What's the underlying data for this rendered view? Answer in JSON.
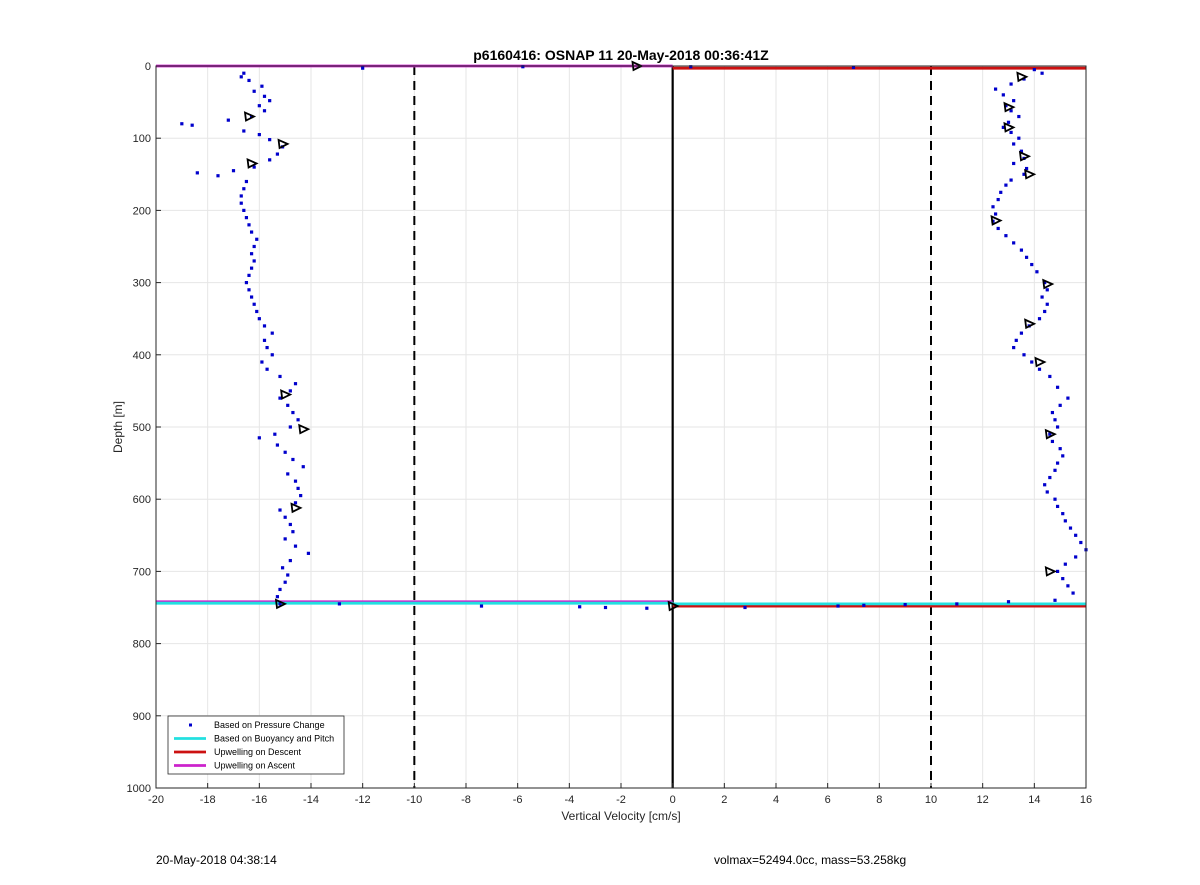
{
  "footer": {
    "left": "20-May-2018 04:38:14",
    "right": "volmax=52494.0cc, mass=53.258kg"
  },
  "chart_data": {
    "type": "scatter",
    "title": "p6160416: OSNAP 11 20-May-2018 00:36:41Z",
    "xlabel": "Vertical Velocity [cm/s]",
    "ylabel": "Depth [m]",
    "xlim": [
      -20,
      16
    ],
    "ylim": [
      0,
      1000
    ],
    "y_reversed": true,
    "grid": true,
    "xticks": [
      -20,
      -18,
      -16,
      -14,
      -12,
      -10,
      -8,
      -6,
      -4,
      -2,
      0,
      2,
      4,
      6,
      8,
      10,
      12,
      14,
      16
    ],
    "yticks": [
      0,
      100,
      200,
      300,
      400,
      500,
      600,
      700,
      800,
      900,
      1000
    ],
    "reference_lines": {
      "solid_x": [
        0
      ],
      "dashed_x": [
        -10,
        10
      ]
    },
    "legend": {
      "position": "bottom-left",
      "entries": [
        {
          "label": "Based on Pressure Change",
          "color": "#0000cc",
          "style": "dot"
        },
        {
          "label": "Based on Buoyancy and Pitch",
          "color": "#22e0e0",
          "style": "line"
        },
        {
          "label": "Upwelling on Descent",
          "color": "#cc1111",
          "style": "line"
        },
        {
          "label": "Upwelling on Ascent",
          "color": "#cc22cc",
          "style": "line"
        }
      ]
    },
    "series": [
      {
        "name": "Based on Pressure Change",
        "color": "#0000cc",
        "style": "dot",
        "descent": [
          [
            14.0,
            5
          ],
          [
            14.3,
            10
          ],
          [
            13.6,
            18
          ],
          [
            13.1,
            25
          ],
          [
            12.5,
            32
          ],
          [
            12.8,
            40
          ],
          [
            13.2,
            48
          ],
          [
            12.9,
            55
          ],
          [
            13.1,
            62
          ],
          [
            13.4,
            70
          ],
          [
            13.0,
            78
          ],
          [
            12.8,
            85
          ],
          [
            13.1,
            92
          ],
          [
            13.4,
            100
          ],
          [
            13.2,
            108
          ],
          [
            13.5,
            118
          ],
          [
            13.6,
            128
          ],
          [
            13.2,
            135
          ],
          [
            13.7,
            142
          ],
          [
            13.6,
            150
          ],
          [
            13.1,
            158
          ],
          [
            12.9,
            165
          ],
          [
            12.7,
            175
          ],
          [
            12.6,
            185
          ],
          [
            12.4,
            195
          ],
          [
            12.5,
            205
          ],
          [
            12.4,
            215
          ],
          [
            12.6,
            225
          ],
          [
            12.9,
            235
          ],
          [
            13.2,
            245
          ],
          [
            13.5,
            255
          ],
          [
            13.7,
            265
          ],
          [
            13.9,
            275
          ],
          [
            14.1,
            285
          ],
          [
            14.4,
            300
          ],
          [
            14.5,
            310
          ],
          [
            14.3,
            320
          ],
          [
            14.5,
            330
          ],
          [
            14.4,
            340
          ],
          [
            14.2,
            350
          ],
          [
            13.8,
            360
          ],
          [
            13.5,
            370
          ],
          [
            13.3,
            380
          ],
          [
            13.2,
            390
          ],
          [
            13.6,
            400
          ],
          [
            13.9,
            410
          ],
          [
            14.2,
            420
          ],
          [
            14.6,
            430
          ],
          [
            14.9,
            445
          ],
          [
            15.3,
            460
          ],
          [
            15.0,
            470
          ],
          [
            14.7,
            480
          ],
          [
            14.8,
            490
          ],
          [
            14.9,
            500
          ],
          [
            14.6,
            510
          ],
          [
            14.7,
            520
          ],
          [
            15.0,
            530
          ],
          [
            15.1,
            540
          ],
          [
            14.9,
            550
          ],
          [
            14.8,
            560
          ],
          [
            14.6,
            570
          ],
          [
            14.4,
            580
          ],
          [
            14.5,
            590
          ],
          [
            14.8,
            600
          ],
          [
            14.9,
            610
          ],
          [
            15.1,
            620
          ],
          [
            15.2,
            630
          ],
          [
            15.4,
            640
          ],
          [
            15.6,
            650
          ],
          [
            15.8,
            660
          ],
          [
            16.0,
            670
          ],
          [
            15.6,
            680
          ],
          [
            15.2,
            690
          ],
          [
            14.9,
            700
          ],
          [
            15.1,
            710
          ],
          [
            15.3,
            720
          ],
          [
            15.5,
            730
          ],
          [
            14.8,
            740
          ],
          [
            13.0,
            742
          ],
          [
            11.0,
            745
          ],
          [
            9.0,
            746
          ],
          [
            7.4,
            747
          ],
          [
            6.4,
            748
          ],
          [
            2.8,
            750
          ],
          [
            7.0,
            2
          ],
          [
            0.7,
            1
          ]
        ],
        "ascent": [
          [
            -15.2,
            745
          ],
          [
            -15.3,
            735
          ],
          [
            -15.2,
            725
          ],
          [
            -15.0,
            715
          ],
          [
            -14.9,
            705
          ],
          [
            -15.1,
            695
          ],
          [
            -14.8,
            685
          ],
          [
            -14.1,
            675
          ],
          [
            -14.6,
            665
          ],
          [
            -15.0,
            655
          ],
          [
            -14.7,
            645
          ],
          [
            -14.8,
            635
          ],
          [
            -15.0,
            625
          ],
          [
            -15.2,
            615
          ],
          [
            -14.6,
            605
          ],
          [
            -14.4,
            595
          ],
          [
            -14.5,
            585
          ],
          [
            -14.6,
            575
          ],
          [
            -14.9,
            565
          ],
          [
            -14.3,
            555
          ],
          [
            -14.7,
            545
          ],
          [
            -15.0,
            535
          ],
          [
            -15.3,
            525
          ],
          [
            -16.0,
            515
          ],
          [
            -15.4,
            510
          ],
          [
            -14.8,
            500
          ],
          [
            -14.5,
            490
          ],
          [
            -14.7,
            480
          ],
          [
            -14.9,
            470
          ],
          [
            -15.2,
            460
          ],
          [
            -14.8,
            450
          ],
          [
            -14.6,
            440
          ],
          [
            -15.2,
            430
          ],
          [
            -15.7,
            420
          ],
          [
            -15.9,
            410
          ],
          [
            -15.5,
            400
          ],
          [
            -15.7,
            390
          ],
          [
            -15.8,
            380
          ],
          [
            -15.5,
            370
          ],
          [
            -15.8,
            360
          ],
          [
            -16.0,
            350
          ],
          [
            -16.1,
            340
          ],
          [
            -16.2,
            330
          ],
          [
            -16.3,
            320
          ],
          [
            -16.4,
            310
          ],
          [
            -16.5,
            300
          ],
          [
            -16.4,
            290
          ],
          [
            -16.3,
            280
          ],
          [
            -16.2,
            270
          ],
          [
            -16.3,
            260
          ],
          [
            -16.2,
            250
          ],
          [
            -16.1,
            240
          ],
          [
            -16.3,
            230
          ],
          [
            -16.4,
            220
          ],
          [
            -16.5,
            210
          ],
          [
            -16.6,
            200
          ],
          [
            -16.7,
            190
          ],
          [
            -16.7,
            180
          ],
          [
            -16.6,
            170
          ],
          [
            -16.5,
            160
          ],
          [
            -17.6,
            152
          ],
          [
            -18.4,
            148
          ],
          [
            -17.0,
            145
          ],
          [
            -16.2,
            140
          ],
          [
            -15.6,
            130
          ],
          [
            -15.3,
            122
          ],
          [
            -15.1,
            112
          ],
          [
            -15.6,
            102
          ],
          [
            -16.0,
            95
          ],
          [
            -16.6,
            90
          ],
          [
            -18.6,
            82
          ],
          [
            -19.0,
            80
          ],
          [
            -17.2,
            75
          ],
          [
            -16.3,
            70
          ],
          [
            -15.8,
            62
          ],
          [
            -16.0,
            55
          ],
          [
            -15.6,
            48
          ],
          [
            -15.8,
            42
          ],
          [
            -16.2,
            35
          ],
          [
            -15.9,
            28
          ],
          [
            -16.4,
            20
          ],
          [
            -16.7,
            15
          ],
          [
            -16.6,
            10
          ],
          [
            -12.0,
            3
          ],
          [
            -5.8,
            1
          ],
          [
            -12.9,
            745
          ],
          [
            -7.4,
            748
          ],
          [
            -3.6,
            749
          ],
          [
            -2.6,
            750
          ],
          [
            -1.0,
            751
          ]
        ]
      },
      {
        "name": "Upwelling on Descent",
        "color": "#cc1111",
        "style": "line",
        "segments": [
          [
            [
              0,
              3
            ],
            [
              16,
              3
            ]
          ],
          [
            [
              0,
              748
            ],
            [
              16,
              748
            ]
          ]
        ]
      },
      {
        "name": "Upwelling on Ascent",
        "color": "#cc22cc",
        "style": "line",
        "segments": [
          [
            [
              -20,
              0
            ],
            [
              0,
              0
            ]
          ],
          [
            [
              -20,
              742
            ],
            [
              0,
              742
            ]
          ]
        ]
      },
      {
        "name": "Based on Buoyancy and Pitch",
        "color": "#22e0e0",
        "style": "line",
        "segments": [
          [
            [
              -20,
              744
            ],
            [
              0,
              744
            ]
          ],
          [
            [
              0,
              745
            ],
            [
              16,
              745
            ]
          ]
        ]
      },
      {
        "name": "glider-markers",
        "color": "#000000",
        "style": "triangle",
        "points": [
          [
            13.5,
            15
          ],
          [
            13.0,
            57
          ],
          [
            13.0,
            85
          ],
          [
            13.6,
            125
          ],
          [
            13.8,
            150
          ],
          [
            12.5,
            214
          ],
          [
            14.5,
            302
          ],
          [
            13.8,
            357
          ],
          [
            14.2,
            410
          ],
          [
            14.6,
            510
          ],
          [
            14.6,
            700
          ],
          [
            -16.4,
            70
          ],
          [
            -15.1,
            108
          ],
          [
            -16.3,
            135
          ],
          [
            -15.0,
            455
          ],
          [
            -14.3,
            503
          ],
          [
            -14.6,
            612
          ],
          [
            -15.2,
            745
          ],
          [
            -1.4,
            0
          ],
          [
            0,
            748
          ]
        ]
      }
    ]
  }
}
